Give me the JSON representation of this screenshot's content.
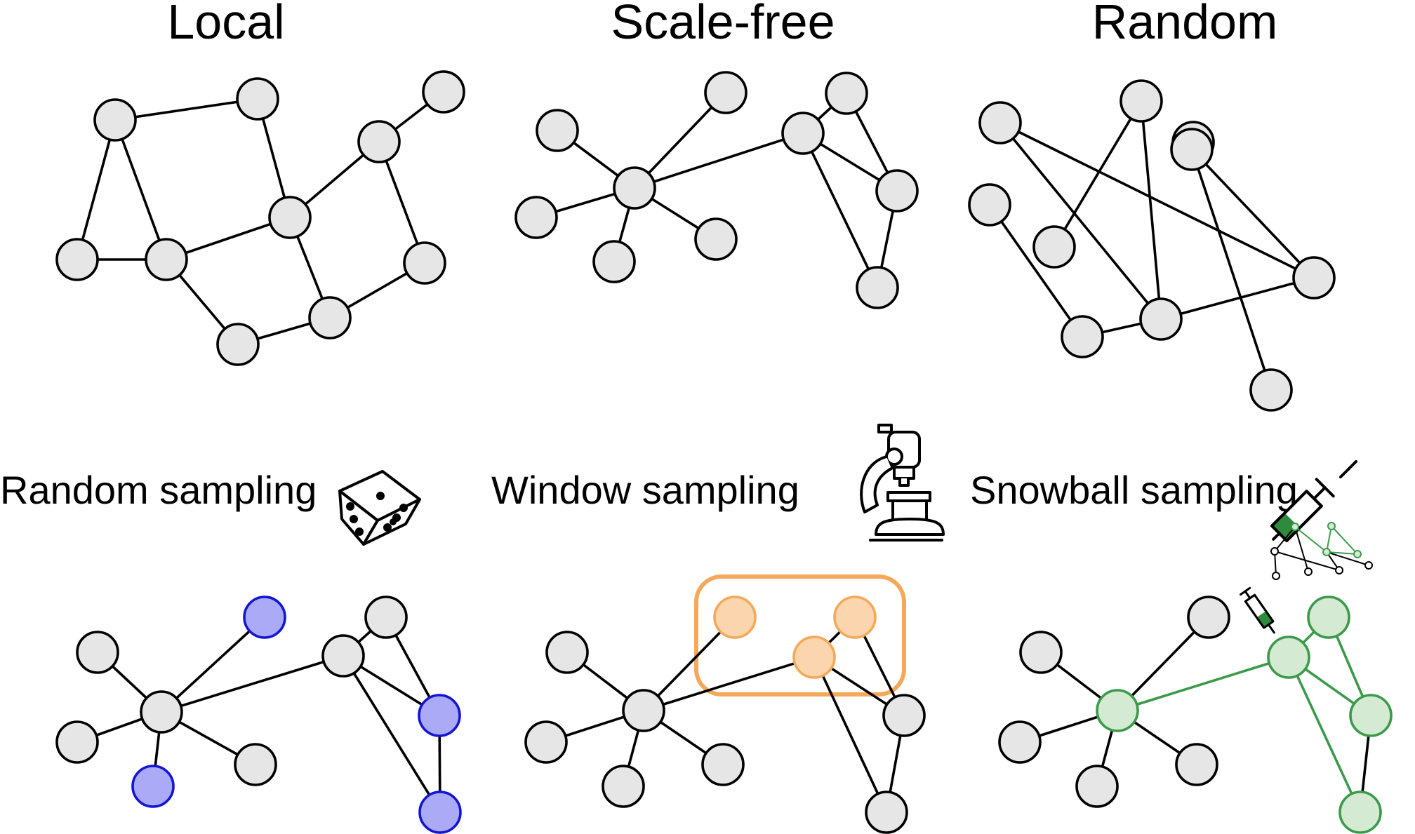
{
  "titles": {
    "local": "Local",
    "scale_free": "Scale-free",
    "random": "Random"
  },
  "sampling_labels": {
    "random": "Random sampling",
    "window": "Window sampling",
    "snowball": "Snowball sampling"
  },
  "icons": {
    "random": "dice-icon",
    "window": "microscope-icon",
    "snowball": "syringe-icon"
  },
  "colors": {
    "node_fill": "#e6e6e6",
    "edge": "#000000",
    "random_sample_fill": "#aaaaf6",
    "random_sample_stroke": "#1414d2",
    "window_fill": "#fbd5ad",
    "window_stroke": "#f4a95a",
    "snowball_fill": "#d4ead3",
    "snowball_stroke": "#3b9a4a"
  }
}
